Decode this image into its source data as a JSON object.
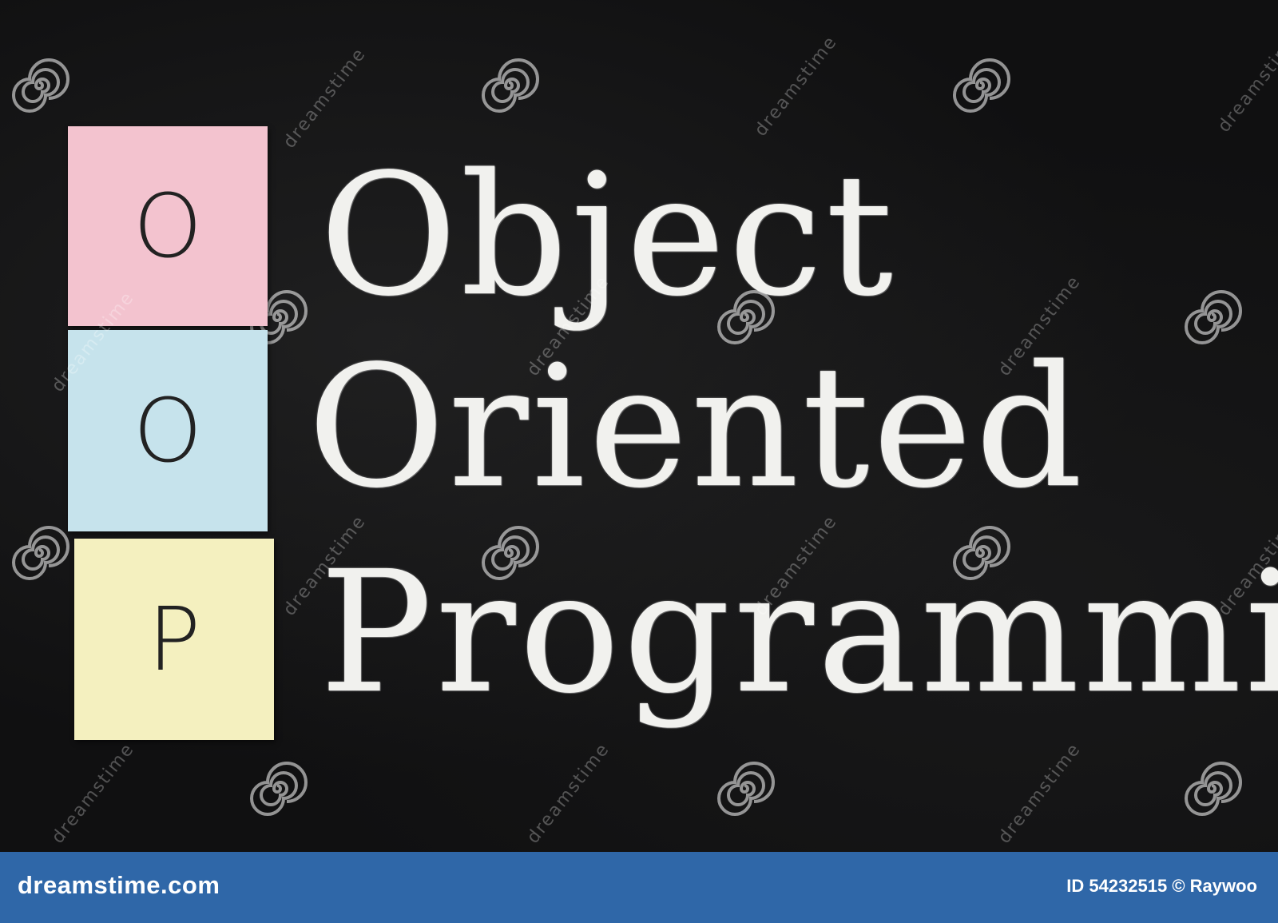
{
  "image": {
    "subject": "chalkboard with sticky notes spelling an acronym",
    "colors": {
      "board": "#101011",
      "chalk": "#f1f1ee",
      "note_pink": "#f3c3cf",
      "note_blue": "#c6e3ec",
      "note_yellow": "#f4f0bf",
      "footer": "#2f67a8"
    }
  },
  "notes": [
    {
      "letter": "O"
    },
    {
      "letter": "O"
    },
    {
      "letter": "P"
    }
  ],
  "chalk_words": [
    "Object",
    "Oriented",
    "Programming"
  ],
  "watermark": {
    "text": "dreamstime",
    "icon": "spiral-icon"
  },
  "footer": {
    "brand": "dreamstime.com",
    "id_text": "ID 54232515 © Raywoo"
  }
}
